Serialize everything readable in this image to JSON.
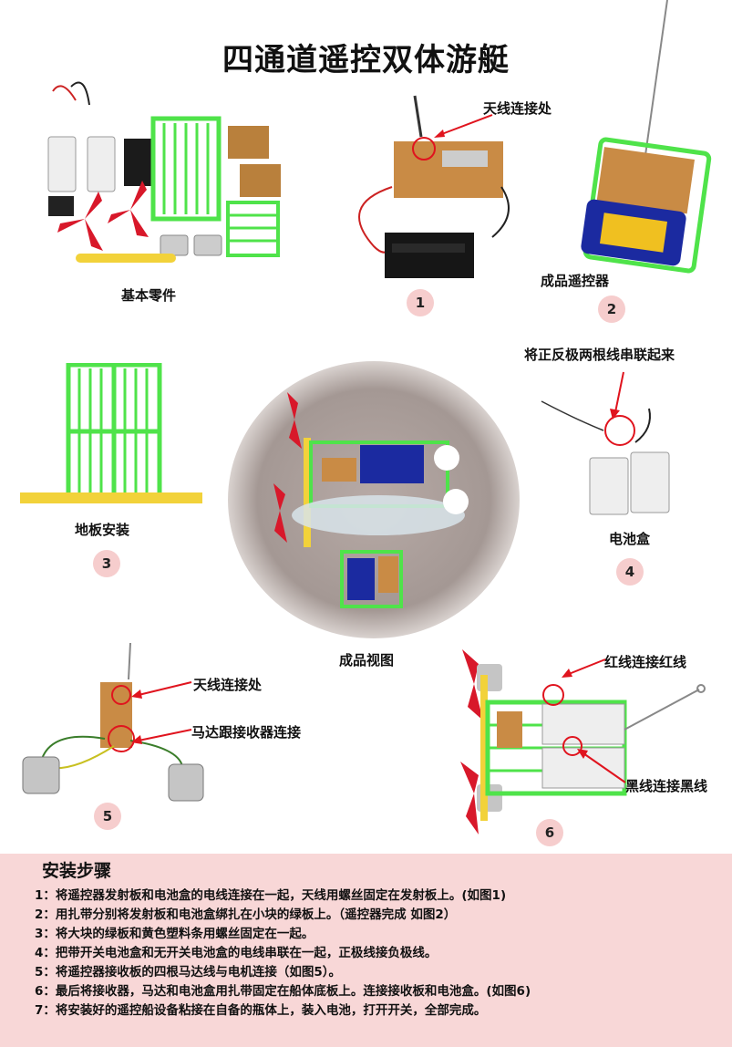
{
  "title": "四通道遥控双体游艇",
  "labels": {
    "basic_parts": "基本零件",
    "antenna_joint_1": "天线连接处",
    "finished_remote": "成品遥控器",
    "series_wires": "将正反极两根线串联起来",
    "floor_install": "地板安装",
    "battery_box": "电池盒",
    "finished_view": "成品视图",
    "antenna_joint_5": "天线连接处",
    "motor_receiver": "马达跟接收器连接",
    "red_to_red": "红线连接红线",
    "black_to_black": "黑线连接黑线"
  },
  "badges": [
    "1",
    "2",
    "3",
    "4",
    "5",
    "6"
  ],
  "steps_title": "安装步骤",
  "steps": [
    "1：将遥控器发射板和电池盒的电线连接在一起，天线用螺丝固定在发射板上。(如图1)",
    "2：用扎带分别将发射板和电池盒绑扎在小块的绿板上。（遥控器完成 如图2）",
    "3：将大块的绿板和黄色塑料条用螺丝固定在一起。",
    "4：把带开关电池盒和无开关电池盒的电线串联在一起，正极线接负极线。",
    "5：将遥控器接收板的四根马达线与电机连接（如图5）。",
    "6：最后将接收器，马达和电池盒用扎带固定在船体底板上。连接接收板和电池盒。(如图6)",
    "7：将安装好的遥控船设备粘接在自备的瓶体上，装入电池，打开开关，全部完成。"
  ],
  "colors": {
    "panel_bg": "#f8d7d7",
    "badge_bg": "#f6cdcd",
    "arrow_red": "#e0141e",
    "green_board": "#4fe34a",
    "yellow_strip": "#f2d23a",
    "propeller_red": "#d8182a"
  }
}
